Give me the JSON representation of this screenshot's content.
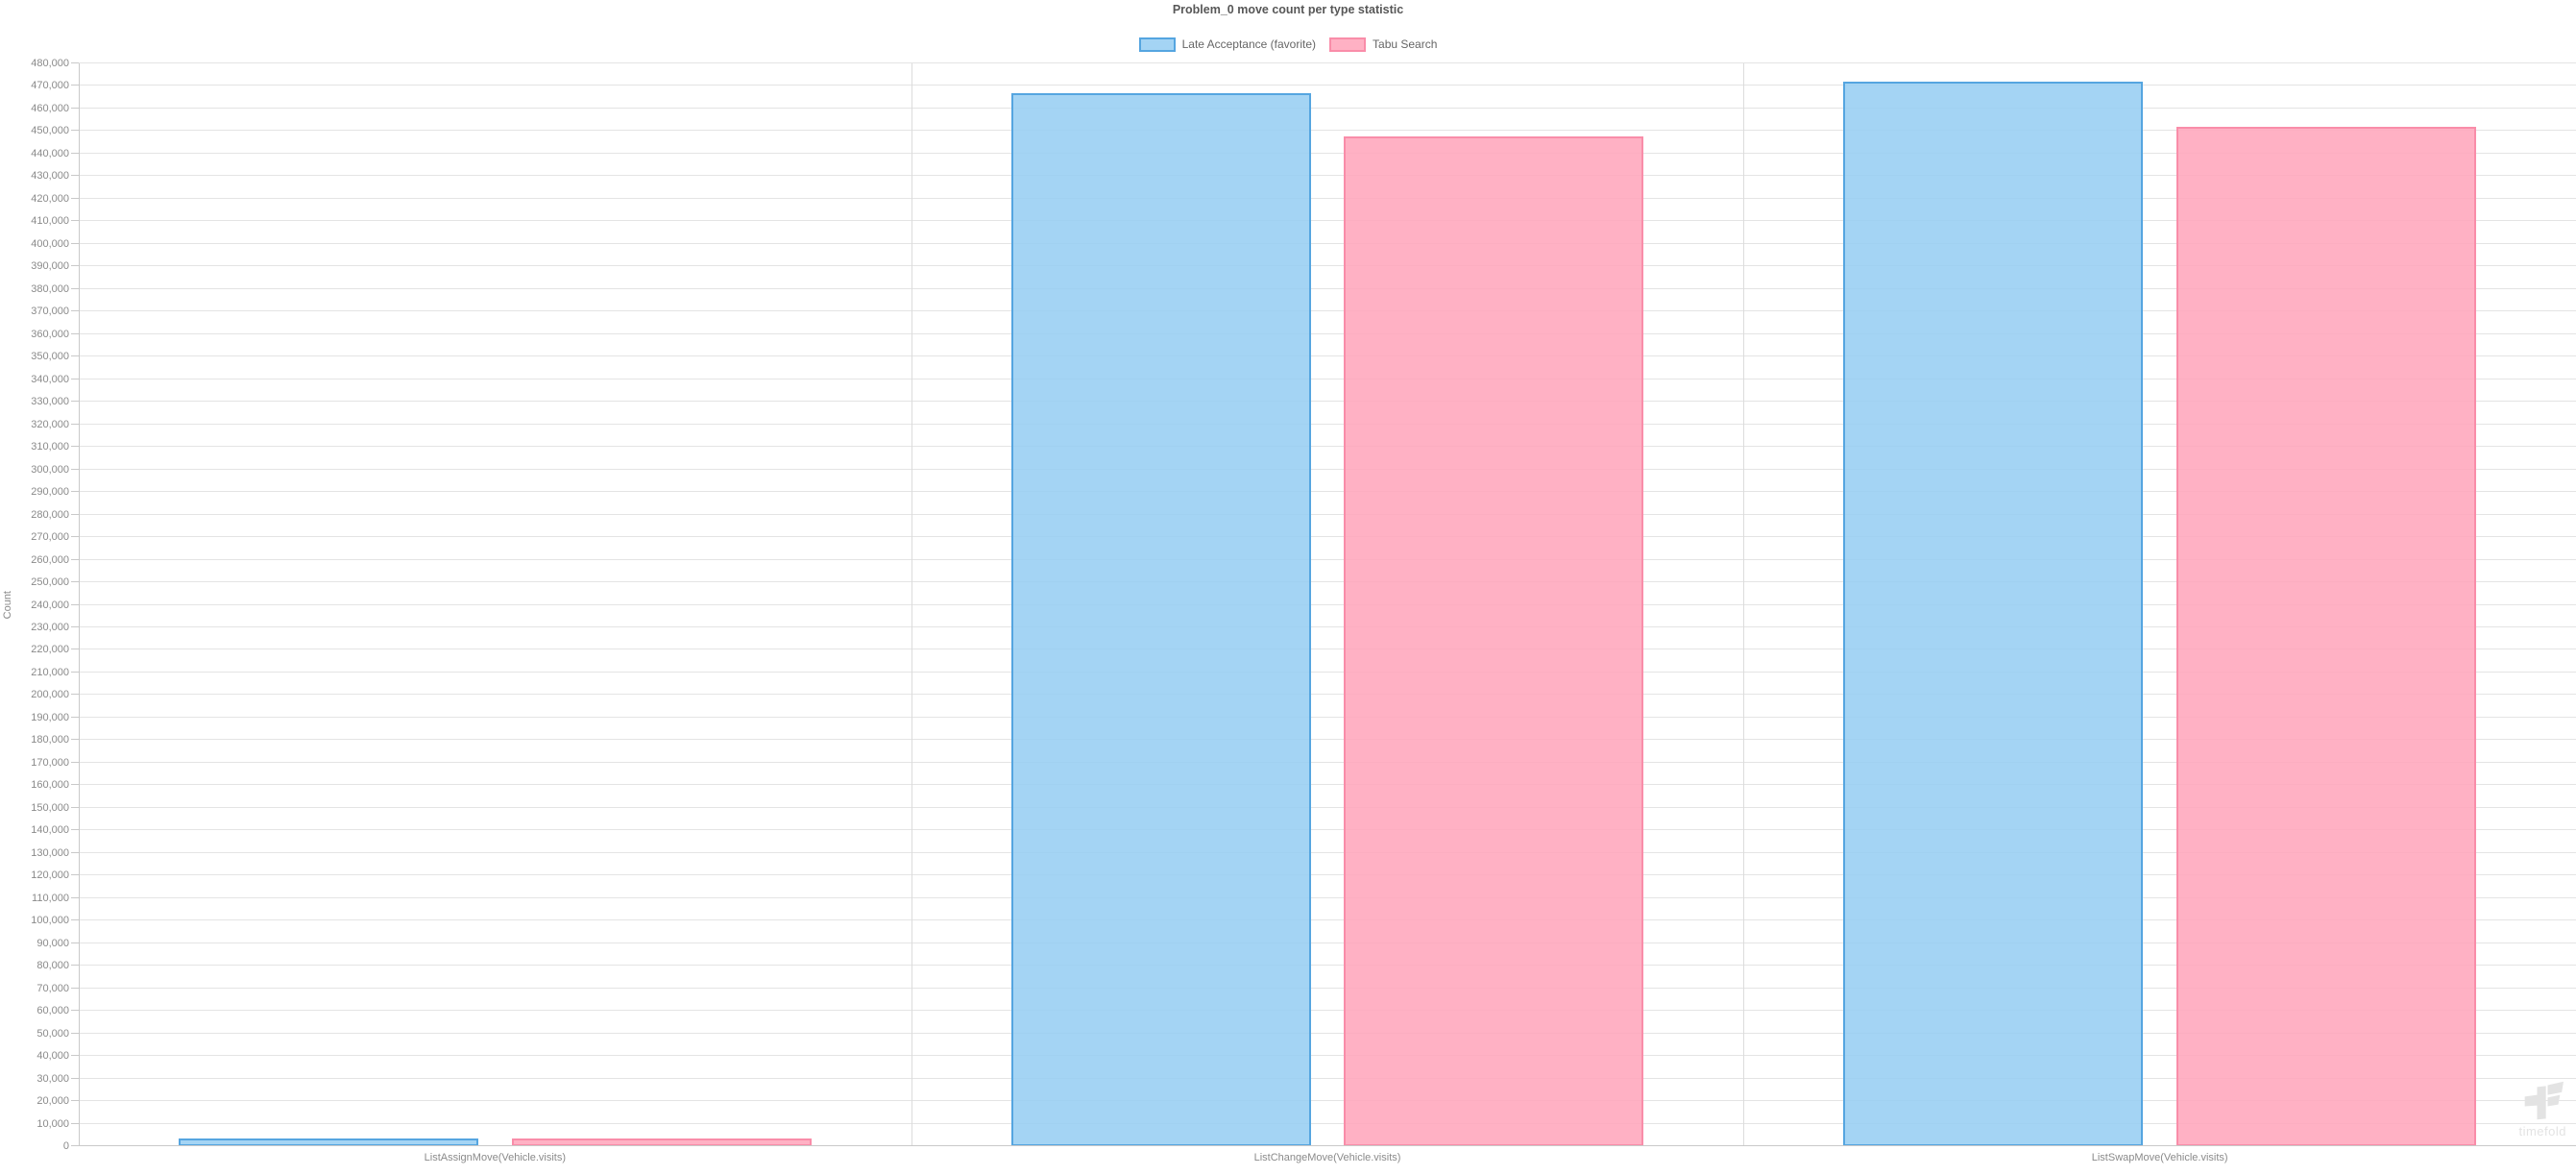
{
  "chart_data": {
    "type": "bar",
    "title": "Problem_0 move count per type statistic",
    "xlabel": "",
    "ylabel": "Count",
    "categories": [
      "ListAssignMove(Vehicle.visits)",
      "ListChangeMove(Vehicle.visits)",
      "ListSwapMove(Vehicle.visits)"
    ],
    "series": [
      {
        "name": "Late Acceptance (favorite)",
        "values": [
          3300,
          466900,
          471900
        ],
        "fill": "#96CDF2",
        "stroke": "#55A5E0"
      },
      {
        "name": "Tabu Search",
        "values": [
          3500,
          447700,
          452000
        ],
        "fill": "#FFA5BB",
        "stroke": "#F98DA9"
      }
    ],
    "ylim": [
      0,
      480000
    ],
    "y_tick_step": 10000,
    "grid": "on",
    "legend_position": "top"
  },
  "watermark": {
    "text": "timefold"
  }
}
